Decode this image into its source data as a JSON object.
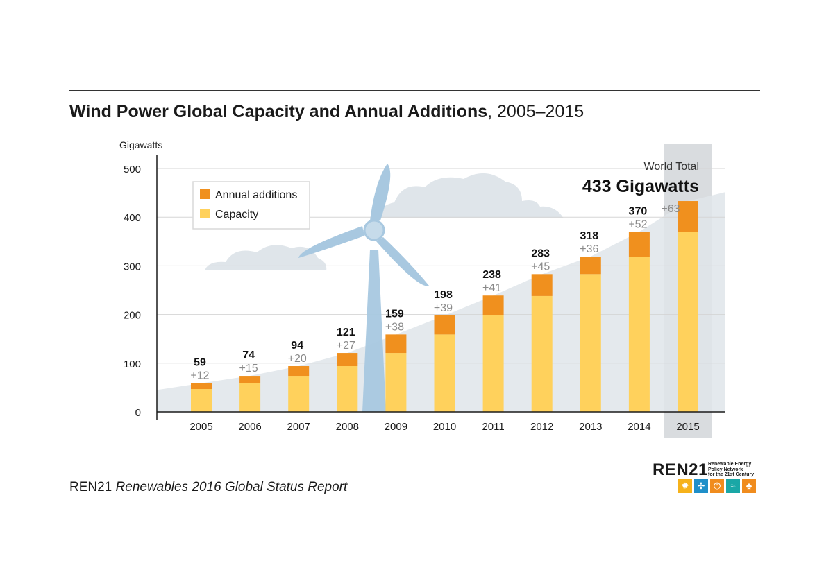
{
  "header": {
    "title_bold": "Wind Power Global Capacity and Annual Additions",
    "title_rest": ", 2005–2015"
  },
  "footer": {
    "source_org": "REN21",
    "source_report": "Renewables 2016 Global Status Report",
    "logo_word": "REN21",
    "logo_tagline": [
      "Renewable Energy",
      "Policy Network",
      "for the 21st Century"
    ],
    "logo_icons": [
      {
        "name": "sun-icon",
        "color": "#f6b21b"
      },
      {
        "name": "wind-turbine-icon",
        "color": "#1f8fc9"
      },
      {
        "name": "power-icon",
        "color": "#f08c1e"
      },
      {
        "name": "water-wave-icon",
        "color": "#1aa7a6"
      },
      {
        "name": "leaf-icon",
        "color": "#f08c1e"
      }
    ]
  },
  "colors": {
    "capacity": "#ffd15c",
    "additions": "#f0901e",
    "area": "#dfe5ea",
    "highlight": "#d9dcdf",
    "turbine": "#a8c8e0"
  },
  "chart_data": {
    "type": "bar",
    "stacked": true,
    "title": "Wind Power Global Capacity and Annual Additions, 2005–2015",
    "ylabel": "Gigawatts",
    "xlabel": "",
    "ylim": [
      0,
      500
    ],
    "yticks": [
      0,
      100,
      200,
      300,
      400,
      500
    ],
    "categories": [
      "2005",
      "2006",
      "2007",
      "2008",
      "2009",
      "2010",
      "2011",
      "2012",
      "2013",
      "2014",
      "2015"
    ],
    "series": [
      {
        "name": "Capacity",
        "values": [
          47,
          59,
          74,
          94,
          121,
          159,
          198,
          238,
          283,
          318,
          370
        ]
      },
      {
        "name": "Annual additions",
        "values": [
          12,
          15,
          20,
          27,
          38,
          39,
          41,
          45,
          36,
          52,
          63
        ]
      }
    ],
    "total_labels": [
      "59",
      "74",
      "94",
      "121",
      "159",
      "198",
      "238",
      "283",
      "318",
      "370",
      ""
    ],
    "addition_labels": [
      "+12",
      "+15",
      "+20",
      "+27",
      "+38",
      "+39",
      "+41",
      "+45",
      "+36",
      "+52",
      "+63"
    ],
    "legend": {
      "position": "top-left",
      "entries": [
        "Annual additions",
        "Capacity"
      ]
    },
    "highlight_category": "2015",
    "annotation": {
      "line1": "World Total",
      "line2": "433 Gigawatts"
    }
  }
}
